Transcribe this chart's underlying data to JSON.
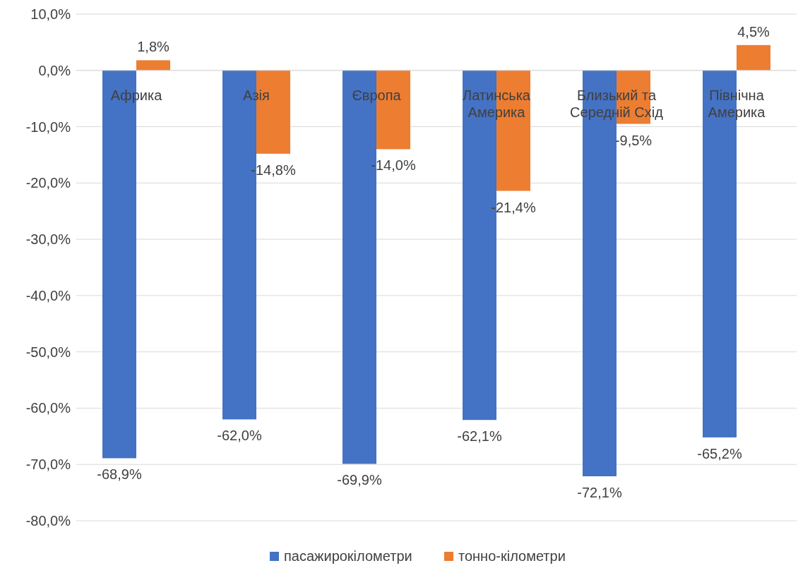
{
  "chart_data": {
    "type": "bar",
    "categories": [
      "Африка",
      "Азія",
      "Європа",
      "Латинська Америка",
      "Близький та Середній Схід",
      "Північна Америка"
    ],
    "series": [
      {
        "name": "пасажирокілометри",
        "color": "#4472c4",
        "values": [
          -68.9,
          -62.0,
          -69.9,
          -62.1,
          -72.1,
          -65.2
        ],
        "value_labels": [
          "-68,9%",
          "-62,0%",
          "-69,9%",
          "-62,1%",
          "-72,1%",
          "-65,2%"
        ]
      },
      {
        "name": "тонно-кілометри",
        "color": "#ed7d31",
        "values": [
          1.8,
          -14.8,
          -14.0,
          -21.4,
          -9.5,
          4.5
        ],
        "value_labels": [
          "1,8%",
          "-14,8%",
          "-14,0%",
          "-21,4%",
          "-9,5%",
          "4,5%"
        ]
      }
    ],
    "ylim": [
      -80,
      10
    ],
    "yticks": [
      {
        "value": 10,
        "label": "10,0%"
      },
      {
        "value": 0,
        "label": "0,0%"
      },
      {
        "value": -10,
        "label": "-10,0%"
      },
      {
        "value": -20,
        "label": "-20,0%"
      },
      {
        "value": -30,
        "label": "-30,0%"
      },
      {
        "value": -40,
        "label": "-40,0%"
      },
      {
        "value": -50,
        "label": "-50,0%"
      },
      {
        "value": -60,
        "label": "-60,0%"
      },
      {
        "value": -70,
        "label": "-70,0%"
      },
      {
        "value": -80,
        "label": "-80,0%"
      }
    ],
    "grid": "y",
    "legend": "bottom"
  }
}
